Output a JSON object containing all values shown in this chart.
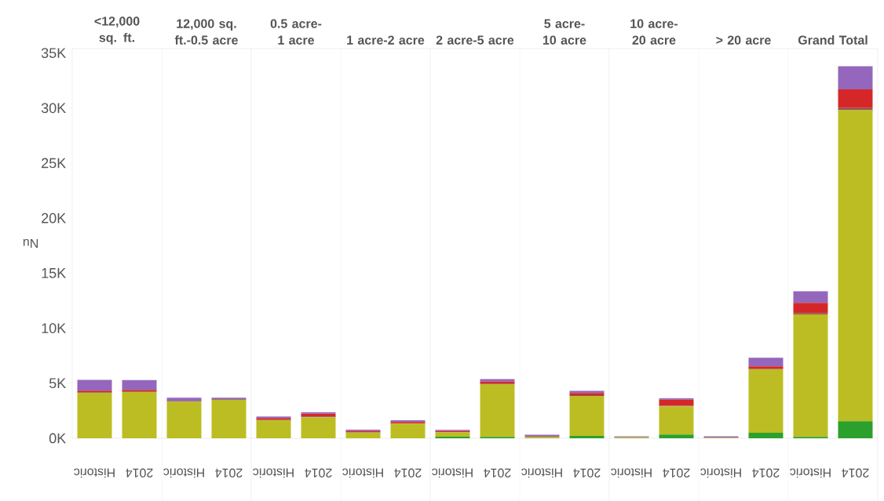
{
  "chart_data": {
    "type": "bar",
    "stacked": true,
    "ylabel": "Nu",
    "annotations": [
      "<12,000 sq. ft.",
      "12,000 sq. ft.-0.5 acre",
      "0.5 acre-1 acre",
      "1 acre-2 acre",
      "2 acre-5 acre",
      "5 acre-10 acre",
      "10 acre-20 acre",
      "> 20 acre",
      "Grand Total"
    ],
    "categories": [
      "Historic",
      "2014",
      "Historic",
      "2014",
      "Historic",
      "2014",
      "Historic",
      "2014",
      "Historic",
      "2014",
      "Historic",
      "2014",
      "Historic",
      "2014",
      "Historic",
      "2014",
      "Historic",
      "2014"
    ],
    "series": [
      {
        "color": "#2ca02c",
        "values": [
          0,
          0,
          0,
          0,
          0,
          0,
          0,
          0,
          150,
          130,
          null,
          210,
          0,
          340,
          0,
          500,
          130,
          1550
        ]
      },
      {
        "color": "#bcbd22",
        "values": [
          4130,
          4200,
          3320,
          3490,
          1630,
          1910,
          510,
          1330,
          400,
          4790,
          150,
          3630,
          80,
          2570,
          50,
          5760,
          11120,
          28250
        ]
      },
      {
        "color": "#8c564b",
        "values": [
          50,
          50,
          80,
          50,
          50,
          60,
          50,
          null,
          null,
          50,
          0,
          80,
          0,
          50,
          0,
          50,
          130,
          200
        ]
      },
      {
        "color": "#d62728",
        "values": [
          150,
          150,
          null,
          0,
          150,
          250,
          100,
          150,
          100,
          200,
          0,
          200,
          0,
          550,
          0,
          230,
          930,
          1700
        ]
      },
      {
        "color": "#9467bd",
        "values": [
          970,
          890,
          280,
          150,
          150,
          150,
          120,
          150,
          120,
          200,
          170,
          180,
          100,
          120,
          130,
          770,
          1050,
          2090
        ]
      }
    ],
    "ylim": [
      0,
      35400
    ],
    "yticks": [
      {
        "value": 0,
        "label": "0K"
      },
      {
        "value": 5000,
        "label": "5K"
      },
      {
        "value": 10000,
        "label": "10K"
      },
      {
        "value": 15000,
        "label": "15K"
      },
      {
        "value": 20000,
        "label": "20K"
      },
      {
        "value": 25000,
        "label": "25K"
      },
      {
        "value": 30000,
        "label": "30K"
      },
      {
        "value": 35000,
        "label": "35K"
      }
    ]
  }
}
